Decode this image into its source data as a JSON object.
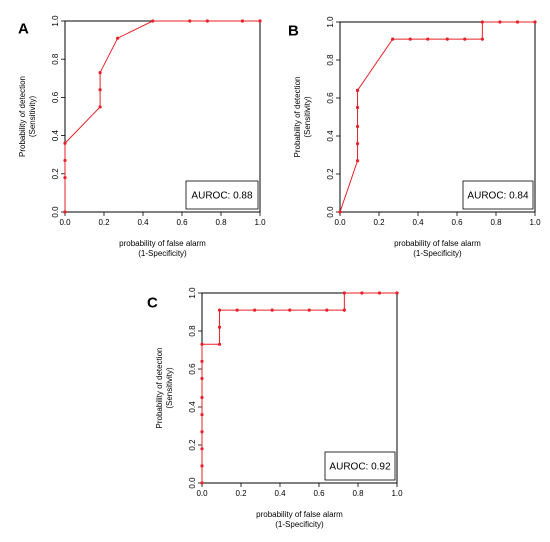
{
  "chart_data": [
    {
      "type": "line",
      "panel": "A",
      "xlabel": "probability of false alarm",
      "xlabel_sub": "(1-Specificity)",
      "ylabel": "Probability of detection",
      "ylabel_sub": "(Sensitivity)",
      "xlim": [
        0,
        1
      ],
      "ylim": [
        0,
        1
      ],
      "xticks": [
        "0.0",
        "0.2",
        "0.4",
        "0.6",
        "0.8",
        "1.0"
      ],
      "yticks": [
        "0.0",
        "0.2",
        "0.4",
        "0.6",
        "0.8",
        "1.0"
      ],
      "annotation": "AUROC: 0.88",
      "series": [
        {
          "x": [
            0,
            0,
            0,
            0,
            0.18,
            0.18,
            0.18,
            0.27,
            0.45,
            0.64,
            0.73,
            0.91,
            1.0
          ],
          "y": [
            0,
            0.18,
            0.27,
            0.36,
            0.55,
            0.64,
            0.73,
            0.91,
            1.0,
            1.0,
            1.0,
            1.0,
            1.0
          ]
        }
      ]
    },
    {
      "type": "line",
      "panel": "B",
      "xlabel": "probability of false alarm",
      "xlabel_sub": "(1-Specificity)",
      "ylabel": "Probability of detection",
      "ylabel_sub": "(Sensitivity)",
      "xlim": [
        0,
        1
      ],
      "ylim": [
        0,
        1
      ],
      "xticks": [
        "0.0",
        "0.2",
        "0.4",
        "0.6",
        "0.8",
        "1.0"
      ],
      "yticks": [
        "0.0",
        "0.2",
        "0.4",
        "0.6",
        "0.8",
        "1.0"
      ],
      "annotation": "AUROC: 0.84",
      "series": [
        {
          "x": [
            0,
            0.09,
            0.09,
            0.09,
            0.09,
            0.09,
            0.09,
            0.27,
            0.36,
            0.45,
            0.55,
            0.64,
            0.73,
            0.73,
            0.82,
            0.91,
            1.0
          ],
          "y": [
            0,
            0.27,
            0.36,
            0.45,
            0.55,
            0.64,
            0.64,
            0.91,
            0.91,
            0.91,
            0.91,
            0.91,
            0.91,
            1.0,
            1.0,
            1.0,
            1.0
          ]
        }
      ]
    },
    {
      "type": "line",
      "panel": "C",
      "xlabel": "probability of false alarm",
      "xlabel_sub": "(1-Specificity)",
      "ylabel": "Probability of detection",
      "ylabel_sub": "(Sensitivity)",
      "xlim": [
        0,
        1
      ],
      "ylim": [
        0,
        1
      ],
      "xticks": [
        "0.0",
        "0.2",
        "0.4",
        "0.6",
        "0.8",
        "1.0"
      ],
      "yticks": [
        "0.0",
        "0.2",
        "0.4",
        "0.6",
        "0.8",
        "1.0"
      ],
      "annotation": "AUROC: 0.92",
      "series": [
        {
          "x": [
            0,
            0,
            0,
            0,
            0,
            0,
            0,
            0,
            0,
            0.09,
            0.09,
            0.09,
            0.18,
            0.27,
            0.36,
            0.45,
            0.55,
            0.64,
            0.73,
            0.73,
            0.82,
            0.91,
            1.0
          ],
          "y": [
            0,
            0.09,
            0.18,
            0.27,
            0.36,
            0.45,
            0.55,
            0.64,
            0.73,
            0.73,
            0.82,
            0.91,
            0.91,
            0.91,
            0.91,
            0.91,
            0.91,
            0.91,
            0.91,
            1.0,
            1.0,
            1.0,
            1.0
          ]
        }
      ]
    }
  ],
  "colors": {
    "roc": "#e8202a"
  }
}
